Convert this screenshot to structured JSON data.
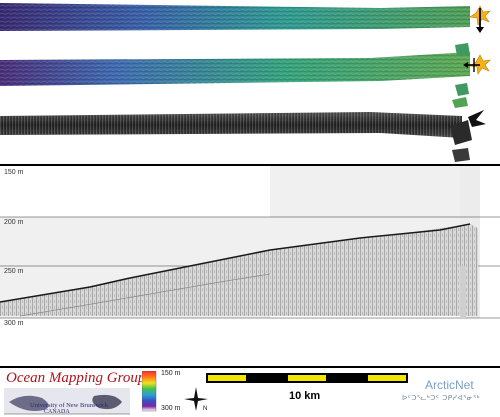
{
  "profile": {
    "depth_labels": [
      "150 m",
      "200 m",
      "250 m",
      "300 m"
    ]
  },
  "legend": {
    "group_name": "Ocean Mapping Group",
    "university": "University of New Brunswick",
    "country": "CANADA",
    "colorbar_top_label": "150 m",
    "colorbar_bottom_label": "300 m",
    "scale_bar_label": "10 km",
    "arcticnet_name": "ArcticNet",
    "arcticnet_syllabics": "ᐅᑦᑐᕐᓚᒃᑐᑦ ᑐᑭᓯᐊᕐᓂᕐᒃ"
  },
  "colors": {
    "colorbar_stops": [
      "#ff2a2a",
      "#ff7a1a",
      "#f0e020",
      "#41c050",
      "#2a9fd8",
      "#3a4ec0",
      "#7a2aa0",
      "#ffffff"
    ],
    "swath_gradient": [
      "#3a2d7a",
      "#2f6fb0",
      "#2aa58a",
      "#4fa85a",
      "#5aa050"
    ],
    "scale_yellow": "#f2e600",
    "omg_red": "#b1121b",
    "arcticnet_blue": "#7aa1c9"
  }
}
